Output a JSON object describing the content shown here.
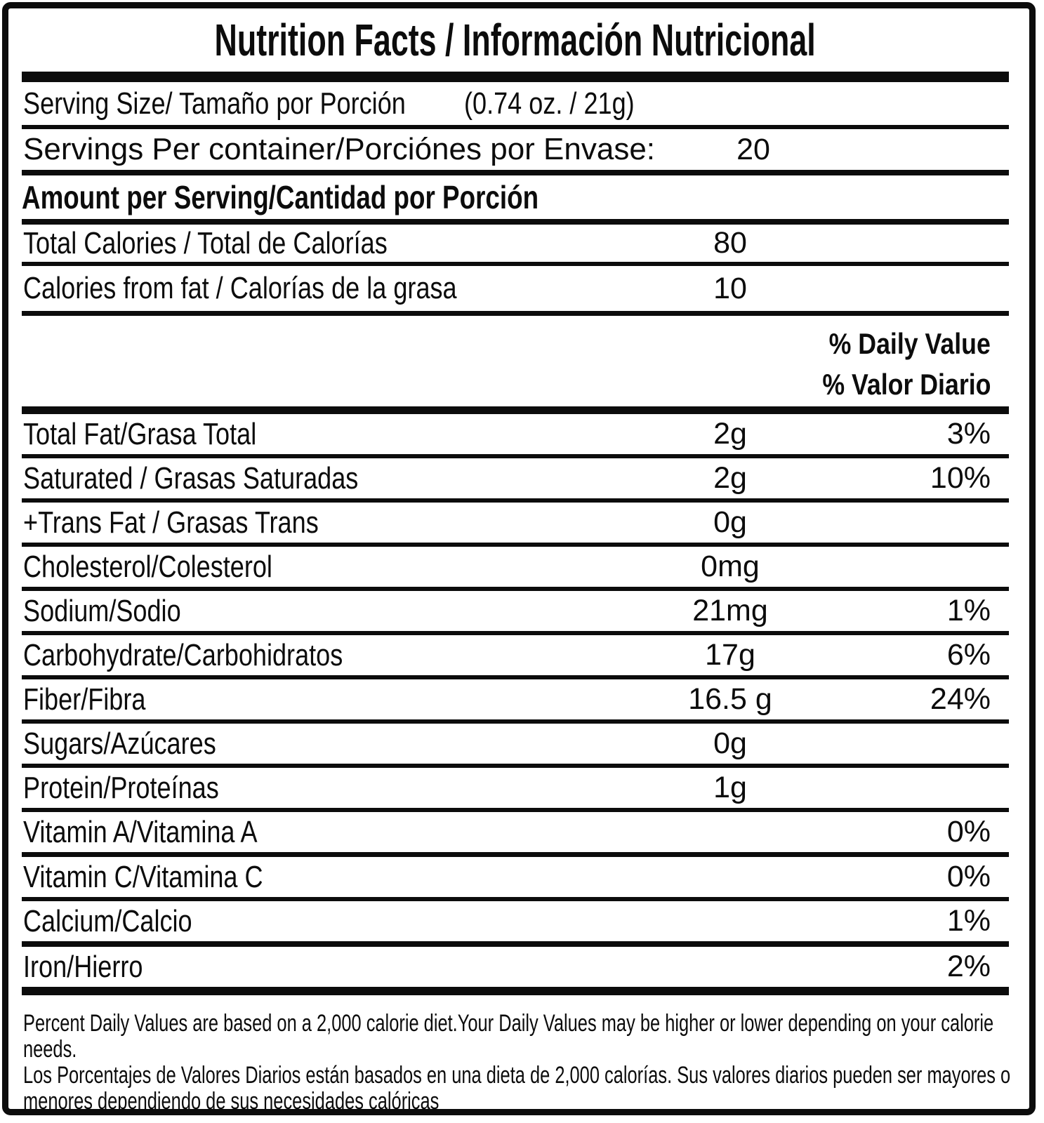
{
  "nutrition": {
    "title": "Nutrition Facts / Información Nutricional",
    "serving_size": {
      "label": "Serving Size/ Tamaño por Porción",
      "value": "(0.74 oz. / 21g)"
    },
    "servings_per_container": {
      "label": "Servings Per container/Porciónes por Envase:",
      "value": "20"
    },
    "amount_per_serving_header": "Amount per Serving/Cantidad por Porción",
    "calories_rows": [
      {
        "label": "Total Calories / Total de Calorías",
        "amount": "80"
      },
      {
        "label": "Calories from fat / Calorías de la grasa",
        "amount": "10"
      }
    ],
    "daily_value_header_en": "% Daily Value",
    "daily_value_header_es": "% Valor Diario",
    "nutrient_rows": [
      {
        "label": "Total Fat/Grasa Total",
        "amount": "2g",
        "dv": "3%"
      },
      {
        "label": "Saturated / Grasas Saturadas",
        "amount": "2g",
        "dv": "10%"
      },
      {
        "label": "+Trans Fat / Grasas Trans",
        "amount": "0g",
        "dv": ""
      },
      {
        "label": "Cholesterol/Colesterol",
        "amount": "0mg",
        "dv": ""
      },
      {
        "label": "Sodium/Sodio",
        "amount": "21mg",
        "dv": "1%"
      },
      {
        "label": "Carbohydrate/Carbohidratos",
        "amount": "17g",
        "dv": "6%"
      },
      {
        "label": "Fiber/Fibra",
        "amount": "16.5 g",
        "dv": "24%"
      },
      {
        "label": "Sugars/Azúcares",
        "amount": "0g",
        "dv": ""
      },
      {
        "label": "Protein/Proteínas",
        "amount": "1g",
        "dv": ""
      },
      {
        "label": "Vitamin A/Vitamina A",
        "amount": "",
        "dv": "0%"
      },
      {
        "label": "Vitamin C/Vitamina C",
        "amount": "",
        "dv": "0%"
      },
      {
        "label": "Calcium/Calcio",
        "amount": "",
        "dv": "1%"
      },
      {
        "label": "Iron/Hierro",
        "amount": "",
        "dv": "2%"
      }
    ],
    "footnote_en": "Percent Daily Values are based on a 2,000 calorie diet.Your Daily Values may be higher or lower depending on your calorie needs.",
    "footnote_es": "Los Porcentajes de Valores Diarios están basados en una dieta de 2,000 calorías. Sus valores diarios pueden ser mayores o menores dependiendo de sus necesidades calóricas",
    "colors": {
      "text": "#0c0c0c",
      "background": "#ffffff",
      "border": "#0c0c0c"
    }
  }
}
